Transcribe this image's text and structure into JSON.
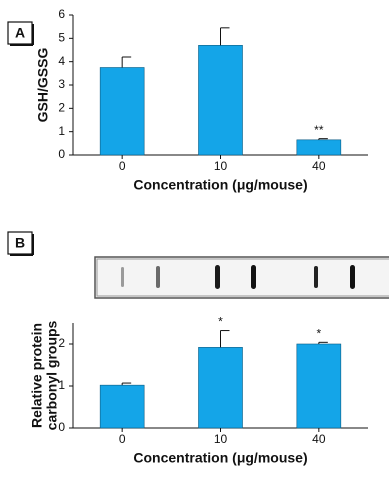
{
  "chart_data": [
    {
      "type": "bar",
      "panel": "A",
      "categories": [
        "0",
        "10",
        "40"
      ],
      "values": [
        3.75,
        4.7,
        0.65
      ],
      "errors": [
        0.45,
        0.75,
        0.05
      ],
      "significance": [
        null,
        null,
        "**"
      ],
      "color": "#14a5e8",
      "ylim": [
        0,
        6
      ],
      "yticks": [
        0,
        1,
        2,
        3,
        4,
        5,
        6
      ],
      "ylabel": [
        "GSH/GSSG"
      ],
      "xlabel": "Concentration (μg/mouse)"
    },
    {
      "type": "bar",
      "panel": "B",
      "categories": [
        "0",
        "10",
        "40"
      ],
      "values": [
        1.02,
        1.92,
        2.0
      ],
      "errors": [
        0.05,
        0.4,
        0.04
      ],
      "significance": [
        null,
        "*",
        "*"
      ],
      "color": "#14a5e8",
      "ylim": [
        0,
        2.5
      ],
      "yticks": [
        0,
        1,
        2
      ],
      "ylabel": [
        "Relative protein",
        "carbonyl groups"
      ],
      "xlabel": "Concentration (μg/mouse)"
    }
  ]
}
